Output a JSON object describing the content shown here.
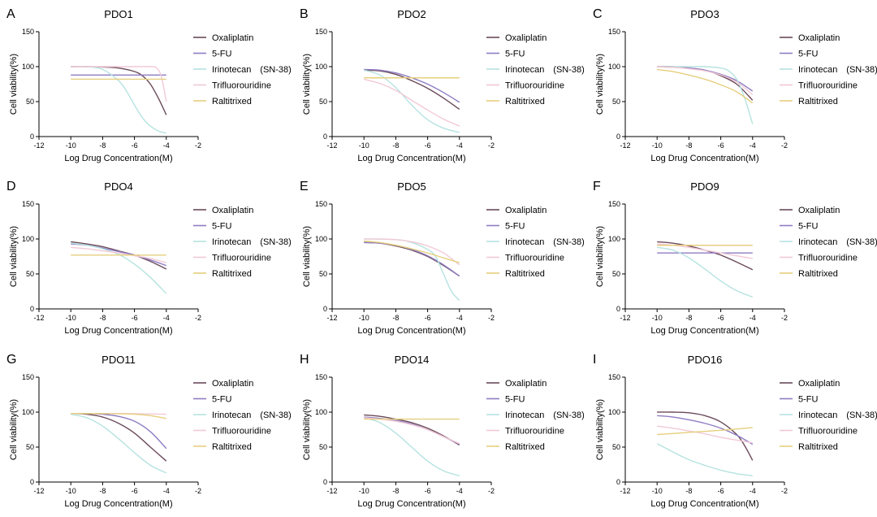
{
  "legend_colors": {
    "Oxaliplatin": "#6b4a5a",
    "5-FU": "#8e7cc3",
    "Irinotecan (SN-38)": "#b5e3e0",
    "Trifluorouridine": "#f2c9d6",
    "Raltitrixed": "#e6cf7e"
  },
  "chart_data": [
    {
      "type": "line",
      "panel_letter": "A",
      "title": "PDO1",
      "xlabel": "Log Drug Concentration(M)",
      "ylabel": "Cell viability(%)",
      "xlim": [
        -12,
        -2
      ],
      "ylim": [
        0,
        150
      ],
      "xticks": [
        -12,
        -10,
        -8,
        -6,
        -4,
        -2
      ],
      "yticks": [
        0,
        50,
        100,
        150
      ],
      "legend_position": "right",
      "series": [
        {
          "name": "Oxaliplatin",
          "x": [
            -10,
            -9,
            -8,
            -7,
            -6,
            -5.5,
            -5,
            -4.5,
            -4
          ],
          "y": [
            100,
            100,
            99.5,
            98,
            93,
            87,
            75,
            55,
            31
          ]
        },
        {
          "name": "5-FU",
          "x": [
            -10,
            -4
          ],
          "y": [
            88,
            88
          ]
        },
        {
          "name": "Irinotecan　(SN-38)",
          "x": [
            -10,
            -9,
            -8,
            -7,
            -6.5,
            -6,
            -5.5,
            -5,
            -4.5,
            -4
          ],
          "y": [
            100,
            100,
            96,
            80,
            65,
            45,
            27,
            15,
            8,
            5
          ]
        },
        {
          "name": "Trifluorouridine",
          "x": [
            -10,
            -8,
            -6,
            -5,
            -4.6,
            -4.3,
            -4
          ],
          "y": [
            100,
            100,
            100,
            100,
            98,
            85,
            50
          ]
        },
        {
          "name": "Raltitrixed",
          "x": [
            -10,
            -4
          ],
          "y": [
            82,
            82
          ]
        }
      ]
    },
    {
      "type": "line",
      "panel_letter": "B",
      "title": "PDO2",
      "xlabel": "Log Drug Concentration(M)",
      "ylabel": "Cell viability(%)",
      "xlim": [
        -12,
        -2
      ],
      "ylim": [
        0,
        150
      ],
      "xticks": [
        -12,
        -10,
        -8,
        -6,
        -4,
        -2
      ],
      "yticks": [
        0,
        50,
        100,
        150
      ],
      "legend_position": "right",
      "series": [
        {
          "name": "Oxaliplatin",
          "x": [
            -10,
            -9,
            -8,
            -7,
            -6,
            -5,
            -4
          ],
          "y": [
            95,
            94,
            89,
            80,
            69,
            55,
            39
          ]
        },
        {
          "name": "5-FU",
          "x": [
            -10,
            -9,
            -8,
            -7,
            -6,
            -5,
            -4
          ],
          "y": [
            96,
            95,
            91,
            84,
            75,
            63,
            49
          ]
        },
        {
          "name": "Irinotecan　(SN-38)",
          "x": [
            -10,
            -9,
            -8,
            -7,
            -6,
            -5,
            -4
          ],
          "y": [
            95,
            88,
            70,
            45,
            24,
            12,
            6
          ]
        },
        {
          "name": "Trifluorouridine",
          "x": [
            -10,
            -9,
            -8,
            -7,
            -6,
            -5,
            -4
          ],
          "y": [
            82,
            76,
            66,
            52,
            38,
            25,
            15
          ]
        },
        {
          "name": "Raltitrixed",
          "x": [
            -10,
            -4
          ],
          "y": [
            84,
            84
          ]
        }
      ]
    },
    {
      "type": "line",
      "panel_letter": "C",
      "title": "PDO3",
      "xlabel": "Log Drug Concentration(M)",
      "ylabel": "Cell viability(%)",
      "xlim": [
        -12,
        -2
      ],
      "ylim": [
        0,
        150
      ],
      "xticks": [
        -12,
        -10,
        -8,
        -6,
        -4,
        -2
      ],
      "yticks": [
        0,
        50,
        100,
        150
      ],
      "legend_position": "right",
      "series": [
        {
          "name": "Oxaliplatin",
          "x": [
            -10,
            -9,
            -8,
            -7,
            -6,
            -5,
            -4
          ],
          "y": [
            100,
            100,
            98,
            95,
            87,
            75,
            52
          ]
        },
        {
          "name": "5-FU",
          "x": [
            -10,
            -9,
            -8,
            -7,
            -6,
            -5,
            -4
          ],
          "y": [
            100,
            99,
            98,
            95,
            89,
            80,
            65
          ]
        },
        {
          "name": "Irinotecan　(SN-38)",
          "x": [
            -10,
            -8,
            -7,
            -6,
            -5.5,
            -5,
            -4.5,
            -4
          ],
          "y": [
            100,
            100,
            100,
            98,
            94,
            82,
            55,
            18
          ]
        },
        {
          "name": "Trifluorouridine",
          "x": [
            -10,
            -9,
            -8,
            -7,
            -6,
            -5,
            -4
          ],
          "y": [
            100,
            99,
            97,
            94,
            88,
            78,
            60
          ]
        },
        {
          "name": "Raltitrixed",
          "x": [
            -10,
            -9,
            -8,
            -7,
            -6,
            -5,
            -4
          ],
          "y": [
            96,
            93,
            88,
            82,
            74,
            64,
            48
          ]
        }
      ]
    },
    {
      "type": "line",
      "panel_letter": "D",
      "title": "PDO4",
      "xlabel": "Log Drug Concentration(M)",
      "ylabel": "Cell viability(%)",
      "xlim": [
        -12,
        -2
      ],
      "ylim": [
        0,
        150
      ],
      "xticks": [
        -12,
        -10,
        -8,
        -6,
        -4,
        -2
      ],
      "yticks": [
        0,
        50,
        100,
        150
      ],
      "legend_position": "right",
      "series": [
        {
          "name": "Oxaliplatin",
          "x": [
            -10,
            -9,
            -8,
            -7,
            -6,
            -5,
            -4
          ],
          "y": [
            96,
            93,
            89,
            83,
            77,
            68,
            57
          ]
        },
        {
          "name": "5-FU",
          "x": [
            -10,
            -9,
            -8,
            -7,
            -6,
            -5,
            -4
          ],
          "y": [
            93,
            91,
            87,
            82,
            77,
            70,
            62
          ]
        },
        {
          "name": "Irinotecan　(SN-38)",
          "x": [
            -10,
            -9,
            -8,
            -7,
            -6,
            -5,
            -4
          ],
          "y": [
            94,
            91,
            86,
            78,
            64,
            45,
            22
          ]
        },
        {
          "name": "Trifluorouridine",
          "x": [
            -10,
            -9,
            -8,
            -7,
            -6,
            -5,
            -4
          ],
          "y": [
            88,
            86,
            83,
            80,
            76,
            72,
            66
          ]
        },
        {
          "name": "Raltitrixed",
          "x": [
            -10,
            -4
          ],
          "y": [
            77,
            77
          ]
        }
      ]
    },
    {
      "type": "line",
      "panel_letter": "E",
      "title": "PDO5",
      "xlabel": "Log Drug Concentration(M)",
      "ylabel": "Cell viability(%)",
      "xlim": [
        -12,
        -2
      ],
      "ylim": [
        0,
        150
      ],
      "xticks": [
        -12,
        -10,
        -8,
        -6,
        -4,
        -2
      ],
      "yticks": [
        0,
        50,
        100,
        150
      ],
      "legend_position": "right",
      "series": [
        {
          "name": "Oxaliplatin",
          "x": [
            -10,
            -9,
            -8,
            -7,
            -6,
            -5,
            -4
          ],
          "y": [
            95,
            94,
            90,
            84,
            75,
            62,
            47
          ]
        },
        {
          "name": "5-FU",
          "x": [
            -10,
            -9,
            -8,
            -7,
            -6,
            -5,
            -4
          ],
          "y": [
            95,
            94,
            91,
            85,
            76,
            63,
            47
          ]
        },
        {
          "name": "Irinotecan　(SN-38)",
          "x": [
            -10,
            -8,
            -7,
            -6,
            -5.5,
            -5,
            -4.5,
            -4
          ],
          "y": [
            100,
            99,
            95,
            85,
            75,
            50,
            25,
            12
          ]
        },
        {
          "name": "Trifluorouridine",
          "x": [
            -10,
            -9,
            -8,
            -7,
            -6,
            -5,
            -4
          ],
          "y": [
            100,
            100,
            99,
            96,
            90,
            80,
            63
          ]
        },
        {
          "name": "Raltitrixed",
          "x": [
            -10,
            -9,
            -8,
            -7,
            -6,
            -5,
            -4
          ],
          "y": [
            97,
            95,
            91,
            86,
            80,
            73,
            66
          ]
        }
      ]
    },
    {
      "type": "line",
      "panel_letter": "F",
      "title": "PDO9",
      "xlabel": "Log Drug Concentration(M)",
      "ylabel": "Cell viability(%)",
      "xlim": [
        -12,
        -2
      ],
      "ylim": [
        0,
        150
      ],
      "xticks": [
        -12,
        -10,
        -8,
        -6,
        -4,
        -2
      ],
      "yticks": [
        0,
        50,
        100,
        150
      ],
      "legend_position": "right",
      "series": [
        {
          "name": "Oxaliplatin",
          "x": [
            -10,
            -9,
            -8,
            -7,
            -6,
            -5,
            -4
          ],
          "y": [
            96,
            94,
            90,
            84,
            77,
            67,
            56
          ]
        },
        {
          "name": "5-FU",
          "x": [
            -10,
            -4
          ],
          "y": [
            80,
            80
          ]
        },
        {
          "name": "Irinotecan　(SN-38)",
          "x": [
            -10,
            -9,
            -8,
            -7,
            -6,
            -5,
            -4
          ],
          "y": [
            88,
            84,
            73,
            57,
            40,
            26,
            17
          ]
        },
        {
          "name": "Trifluorouridine",
          "x": [
            -10,
            -9,
            -8,
            -7,
            -6,
            -5,
            -4
          ],
          "y": [
            93,
            91,
            88,
            84,
            80,
            76,
            72
          ]
        },
        {
          "name": "Raltitrixed",
          "x": [
            -10,
            -4
          ],
          "y": [
            91,
            91
          ]
        }
      ]
    },
    {
      "type": "line",
      "panel_letter": "G",
      "title": "PDO11",
      "xlabel": "Log Drug Concentration(M)",
      "ylabel": "Cell viability(%)",
      "xlim": [
        -12,
        -2
      ],
      "ylim": [
        0,
        150
      ],
      "xticks": [
        -12,
        -10,
        -8,
        -6,
        -4,
        -2
      ],
      "yticks": [
        0,
        50,
        100,
        150
      ],
      "legend_position": "right",
      "series": [
        {
          "name": "Oxaliplatin",
          "x": [
            -10,
            -9,
            -8,
            -7,
            -6,
            -5,
            -4
          ],
          "y": [
            98,
            97,
            93,
            84,
            70,
            50,
            30
          ]
        },
        {
          "name": "5-FU",
          "x": [
            -10,
            -9,
            -8,
            -7,
            -6,
            -5,
            -4
          ],
          "y": [
            98,
            98,
            97,
            94,
            87,
            72,
            48
          ]
        },
        {
          "name": "Irinotecan　(SN-38)",
          "x": [
            -10,
            -9,
            -8,
            -7,
            -6,
            -5,
            -4
          ],
          "y": [
            97,
            92,
            80,
            62,
            42,
            24,
            13
          ]
        },
        {
          "name": "Trifluorouridine",
          "x": [
            -10,
            -7,
            -4
          ],
          "y": [
            98,
            98,
            97
          ]
        },
        {
          "name": "Raltitrixed",
          "x": [
            -10,
            -8,
            -6,
            -5,
            -4
          ],
          "y": [
            98,
            98,
            97,
            95,
            91
          ]
        }
      ]
    },
    {
      "type": "line",
      "panel_letter": "H",
      "title": "PDO14",
      "xlabel": "Log Drug Concentration(M)",
      "ylabel": "Cell viability(%)",
      "xlim": [
        -12,
        -2
      ],
      "ylim": [
        0,
        150
      ],
      "xticks": [
        -12,
        -10,
        -8,
        -6,
        -4,
        -2
      ],
      "yticks": [
        0,
        50,
        100,
        150
      ],
      "legend_position": "right",
      "series": [
        {
          "name": "Oxaliplatin",
          "x": [
            -10,
            -9,
            -8,
            -7,
            -6,
            -5,
            -4
          ],
          "y": [
            96,
            94,
            90,
            85,
            77,
            66,
            53
          ]
        },
        {
          "name": "5-FU",
          "x": [
            -10,
            -9,
            -8,
            -7,
            -6,
            -5,
            -4
          ],
          "y": [
            93,
            91,
            88,
            83,
            75,
            65,
            54
          ]
        },
        {
          "name": "Irinotecan　(SN-38)",
          "x": [
            -10,
            -9,
            -8,
            -7,
            -6,
            -5,
            -4
          ],
          "y": [
            92,
            85,
            70,
            50,
            30,
            16,
            9
          ]
        },
        {
          "name": "Trifluorouridine",
          "x": [
            -10,
            -9,
            -8,
            -7,
            -6,
            -5,
            -4
          ],
          "y": [
            92,
            90,
            87,
            82,
            75,
            65,
            55
          ]
        },
        {
          "name": "Raltitrixed",
          "x": [
            -10,
            -4
          ],
          "y": [
            90,
            90
          ]
        }
      ]
    },
    {
      "type": "line",
      "panel_letter": "I",
      "title": "PDO16",
      "xlabel": "Log Drug Concentration(M)",
      "ylabel": "Cell viability(%)",
      "xlim": [
        -12,
        -2
      ],
      "ylim": [
        0,
        150
      ],
      "xticks": [
        -12,
        -10,
        -8,
        -6,
        -4,
        -2
      ],
      "yticks": [
        0,
        50,
        100,
        150
      ],
      "legend_position": "right",
      "series": [
        {
          "name": "Oxaliplatin",
          "x": [
            -10,
            -9,
            -8,
            -7,
            -6,
            -5,
            -4.5,
            -4
          ],
          "y": [
            100,
            100,
            99,
            95,
            86,
            68,
            52,
            31
          ]
        },
        {
          "name": "5-FU",
          "x": [
            -10,
            -9,
            -8,
            -7,
            -6,
            -5,
            -4
          ],
          "y": [
            95,
            93,
            89,
            84,
            77,
            67,
            54
          ]
        },
        {
          "name": "Irinotecan　(SN-38)",
          "x": [
            -10,
            -9,
            -8,
            -7,
            -6,
            -5,
            -4
          ],
          "y": [
            55,
            43,
            32,
            24,
            17,
            12,
            9
          ]
        },
        {
          "name": "Trifluorouridine",
          "x": [
            -10,
            -9,
            -8,
            -7,
            -6,
            -5,
            -4
          ],
          "y": [
            80,
            77,
            73,
            69,
            64,
            60,
            56
          ]
        },
        {
          "name": "Raltitrixed",
          "x": [
            -10,
            -8,
            -6,
            -4
          ],
          "y": [
            68,
            71,
            74,
            78
          ]
        }
      ]
    }
  ]
}
